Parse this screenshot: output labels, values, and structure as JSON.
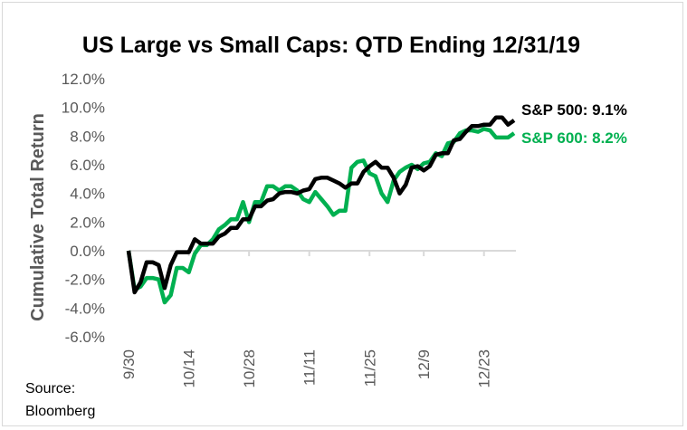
{
  "chart_data": {
    "type": "line",
    "title": "US Large vs Small Caps: QTD Ending 12/31/19",
    "xlabel": "",
    "ylabel": "Cumulative Total Return",
    "ylim": [
      -6,
      12
    ],
    "yticks": [
      "-6.0%",
      "-4.0%",
      "-2.0%",
      "0.0%",
      "2.0%",
      "4.0%",
      "6.0%",
      "8.0%",
      "10.0%",
      "12.0%"
    ],
    "xticks": [
      "9/30",
      "10/14",
      "10/28",
      "11/11",
      "11/25",
      "12/9",
      "12/23"
    ],
    "grid": false,
    "x": [
      "9/30",
      "10/1",
      "10/2",
      "10/3",
      "10/4",
      "10/7",
      "10/8",
      "10/9",
      "10/10",
      "10/11",
      "10/14",
      "10/15",
      "10/16",
      "10/17",
      "10/18",
      "10/21",
      "10/22",
      "10/23",
      "10/24",
      "10/25",
      "10/28",
      "10/29",
      "10/30",
      "10/31",
      "11/1",
      "11/4",
      "11/5",
      "11/6",
      "11/7",
      "11/8",
      "11/11",
      "11/12",
      "11/13",
      "11/14",
      "11/15",
      "11/18",
      "11/19",
      "11/20",
      "11/21",
      "11/22",
      "11/25",
      "11/26",
      "11/27",
      "11/29",
      "12/2",
      "12/3",
      "12/4",
      "12/5",
      "12/6",
      "12/9",
      "12/10",
      "12/11",
      "12/12",
      "12/13",
      "12/16",
      "12/17",
      "12/18",
      "12/19",
      "12/20",
      "12/23",
      "12/24",
      "12/26",
      "12/27",
      "12/30",
      "12/31"
    ],
    "series": [
      {
        "name": "S&P 500",
        "end_label": "S&P 500: 9.1%",
        "color": "#000000",
        "values": [
          0,
          -2.9,
          -2.2,
          -0.8,
          -0.8,
          -1.0,
          -2.6,
          -1.0,
          -0.1,
          -0.1,
          -0.1,
          0.8,
          0.5,
          0.5,
          0.5,
          1.0,
          1.2,
          1.6,
          1.6,
          2.2,
          2.2,
          3.1,
          3.1,
          3.5,
          3.6,
          4.0,
          4.1,
          4.1,
          4.0,
          4.2,
          4.3,
          5.0,
          5.1,
          5.1,
          4.9,
          4.7,
          4.4,
          4.7,
          4.7,
          5.5,
          5.9,
          6.2,
          5.8,
          5.8,
          5.1,
          4.0,
          4.6,
          5.8,
          5.9,
          5.6,
          5.9,
          6.7,
          6.8,
          6.8,
          7.7,
          7.8,
          8.3,
          8.7,
          8.7,
          8.8,
          8.8,
          9.3,
          9.3,
          8.8,
          9.1
        ]
      },
      {
        "name": "S&P 600",
        "end_label": "S&P 600: 8.2%",
        "color": "#00B050",
        "values": [
          0,
          -2.7,
          -2.5,
          -1.9,
          -1.9,
          -2.0,
          -3.6,
          -3.1,
          -1.2,
          -1.2,
          -1.5,
          -0.2,
          0.4,
          0.4,
          0.8,
          1.5,
          1.8,
          2.2,
          2.2,
          3.4,
          2.0,
          3.4,
          3.4,
          4.5,
          4.5,
          4.2,
          4.5,
          4.5,
          4.2,
          3.6,
          3.4,
          4.1,
          3.6,
          3.1,
          2.5,
          2.8,
          2.8,
          5.8,
          6.2,
          6.3,
          5.4,
          5.2,
          4.0,
          3.4,
          4.9,
          5.5,
          5.8,
          6.0,
          5.7,
          6.1,
          6.2,
          6.8,
          6.6,
          7.5,
          7.6,
          8.2,
          8.4,
          8.4,
          8.3,
          8.5,
          8.4,
          7.9,
          7.9,
          7.9,
          8.2
        ]
      }
    ],
    "legend": "end-of-line labels, right"
  },
  "source": {
    "line1": "Source:",
    "line2": "Bloomberg"
  }
}
